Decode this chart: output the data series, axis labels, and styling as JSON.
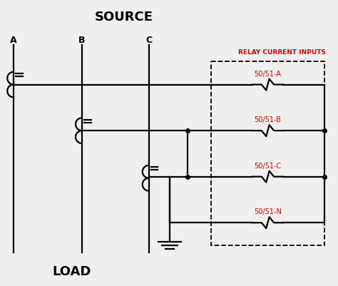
{
  "title": "SOURCE",
  "load_label": "LOAD",
  "relay_label": "RELAY CURRENT INPUTS",
  "relay_labels": [
    "50/51-A",
    "50/51-B",
    "50/51-C",
    "50/51-N"
  ],
  "phase_labels": [
    "A",
    "B",
    "C"
  ],
  "bg_color": "#efefef",
  "line_color": "#000000",
  "relay_color": "#cc0000",
  "figsize": [
    4.74,
    4.01
  ],
  "dpi": 100
}
